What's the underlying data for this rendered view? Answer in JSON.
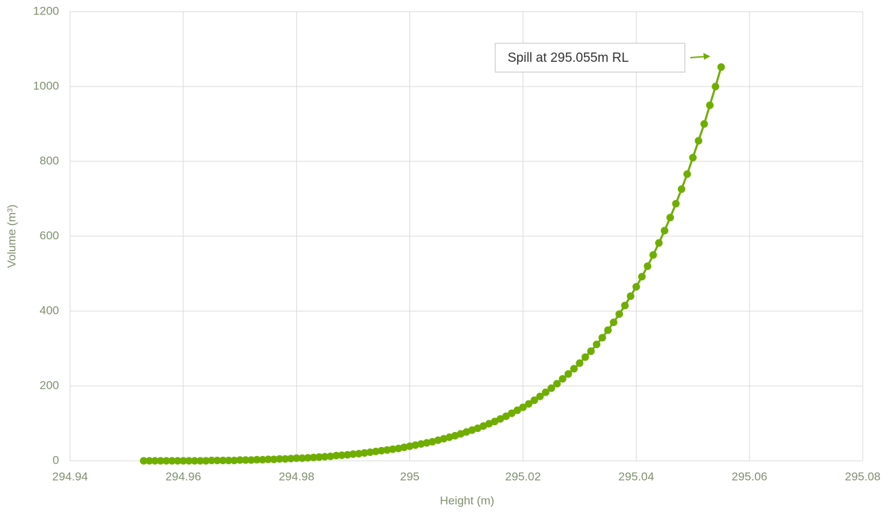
{
  "chart_data": {
    "type": "scatter",
    "x_label": "Height (m)",
    "y_label": "Volume (m³)",
    "annotation": "Spill  at 295.055m RL",
    "color": "#6fae00",
    "x": [
      294.953,
      294.954,
      294.955,
      294.956,
      294.957,
      294.958,
      294.959,
      294.96,
      294.961,
      294.962,
      294.963,
      294.964,
      294.965,
      294.966,
      294.967,
      294.968,
      294.969,
      294.97,
      294.971,
      294.972,
      294.973,
      294.974,
      294.975,
      294.976,
      294.977,
      294.978,
      294.979,
      294.98,
      294.981,
      294.982,
      294.983,
      294.984,
      294.985,
      294.986,
      294.987,
      294.988,
      294.989,
      294.99,
      294.991,
      294.992,
      294.993,
      294.994,
      294.995,
      294.996,
      294.997,
      294.998,
      294.999,
      295.0,
      295.001,
      295.002,
      295.003,
      295.004,
      295.005,
      295.006,
      295.007,
      295.008,
      295.009,
      295.01,
      295.011,
      295.012,
      295.013,
      295.014,
      295.015,
      295.016,
      295.017,
      295.018,
      295.019,
      295.02,
      295.021,
      295.022,
      295.023,
      295.024,
      295.025,
      295.026,
      295.027,
      295.028,
      295.029,
      295.03,
      295.031,
      295.032,
      295.033,
      295.034,
      295.035,
      295.036,
      295.037,
      295.038,
      295.039,
      295.04,
      295.041,
      295.042,
      295.043,
      295.044,
      295.045,
      295.046,
      295.047,
      295.048,
      295.049,
      295.05,
      295.051,
      295.052,
      295.053,
      295.054,
      295.055
    ],
    "values": [
      0,
      0,
      0,
      0,
      0,
      0,
      0,
      0,
      0,
      0,
      0,
      0,
      1,
      1,
      1,
      1,
      1,
      2,
      2,
      2,
      3,
      3,
      4,
      4,
      5,
      5,
      6,
      7,
      7,
      8,
      9,
      10,
      11,
      12,
      14,
      15,
      16,
      18,
      19,
      21,
      23,
      25,
      27,
      29,
      31,
      33,
      36,
      39,
      42,
      45,
      48,
      51,
      55,
      59,
      63,
      67,
      72,
      77,
      82,
      87,
      93,
      99,
      105,
      112,
      119,
      127,
      135,
      143,
      152,
      162,
      172,
      183,
      194,
      206,
      219,
      232,
      246,
      261,
      277,
      293,
      311,
      329,
      349,
      370,
      392,
      415,
      440,
      465,
      492,
      520,
      550,
      582,
      615,
      650,
      687,
      726,
      766,
      810,
      855,
      900,
      950,
      1000,
      1052
    ],
    "xlim": [
      294.94,
      295.08
    ],
    "xticks": [
      294.94,
      294.96,
      294.98,
      295,
      295.02,
      295.04,
      295.06,
      295.08
    ],
    "ylim": [
      0,
      1200
    ],
    "yticks": [
      0,
      200,
      400,
      600,
      800,
      1000,
      1200
    ],
    "grid": true
  }
}
